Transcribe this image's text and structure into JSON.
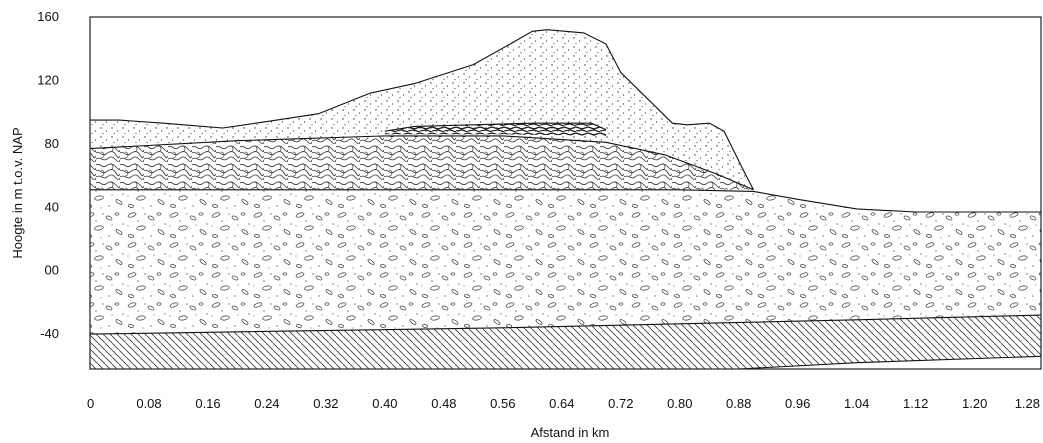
{
  "diagram": {
    "type": "geological-cross-section",
    "y_axis": {
      "title": "Hoogte in m t.o.v. NAP",
      "ticks": [
        160,
        120,
        80,
        40,
        0,
        -40
      ],
      "tick_labels": [
        "160",
        "120",
        "80",
        "40",
        "00",
        "-40"
      ],
      "range": [
        -62,
        160
      ]
    },
    "x_axis": {
      "title": "Afstand in km",
      "ticks": [
        0,
        0.08,
        0.16,
        0.24,
        0.32,
        0.4,
        0.48,
        0.56,
        0.64,
        0.72,
        0.8,
        0.88,
        0.96,
        1.04,
        1.12,
        1.2,
        1.28
      ],
      "tick_labels": [
        "0",
        "0.08",
        "0.16",
        "0.24",
        "0.32",
        "0.40",
        "0.48",
        "0.56",
        "0.64",
        "0.72",
        "0.80",
        "0.88",
        "0.96",
        "1.04",
        "1.12",
        "1.20",
        "1.28"
      ],
      "range": [
        0,
        1.29
      ]
    },
    "layers": [
      {
        "id": "hatched-base",
        "pattern": "diagonal-hatch",
        "top": [
          [
            0,
            -40
          ],
          [
            0.56,
            -36
          ],
          [
            1.04,
            -31
          ],
          [
            1.29,
            -28
          ]
        ],
        "bottom": [
          [
            0,
            -62
          ],
          [
            0.48,
            -62
          ],
          [
            0.88,
            -62
          ],
          [
            1.04,
            -58
          ],
          [
            1.29,
            -54
          ]
        ]
      },
      {
        "id": "gravel",
        "pattern": "pebbles",
        "top": [
          [
            0,
            51
          ],
          [
            0.8,
            51
          ],
          [
            0.9,
            50
          ],
          [
            0.96,
            45
          ],
          [
            1.04,
            39
          ],
          [
            1.12,
            37
          ],
          [
            1.29,
            37
          ]
        ],
        "bottom": [
          [
            0,
            -40
          ],
          [
            0.56,
            -36
          ],
          [
            1.04,
            -31
          ],
          [
            1.29,
            -28
          ]
        ]
      },
      {
        "id": "contorted",
        "pattern": "contorted-lines",
        "top": [
          [
            0,
            77
          ],
          [
            0.2,
            82
          ],
          [
            0.4,
            85
          ],
          [
            0.56,
            85
          ],
          [
            0.7,
            81
          ],
          [
            0.78,
            73
          ],
          [
            0.85,
            61
          ],
          [
            0.9,
            51
          ]
        ],
        "bottom": [
          [
            0,
            51
          ],
          [
            0.9,
            51
          ]
        ]
      },
      {
        "id": "lens",
        "pattern": "dark-streaks",
        "top": [
          [
            0.4,
            88
          ],
          [
            0.44,
            91
          ],
          [
            0.52,
            92
          ],
          [
            0.6,
            93
          ],
          [
            0.68,
            93
          ],
          [
            0.7,
            89
          ]
        ],
        "bottom": [
          [
            0.4,
            86
          ],
          [
            0.56,
            86
          ],
          [
            0.7,
            85
          ]
        ]
      },
      {
        "id": "sand-top",
        "pattern": "dots",
        "top": [
          [
            0,
            95
          ],
          [
            0.04,
            95
          ],
          [
            0.1,
            93
          ],
          [
            0.18,
            90
          ],
          [
            0.24,
            94
          ],
          [
            0.31,
            99
          ],
          [
            0.38,
            112
          ],
          [
            0.44,
            118
          ],
          [
            0.52,
            130
          ],
          [
            0.57,
            143
          ],
          [
            0.6,
            151
          ],
          [
            0.62,
            152
          ],
          [
            0.67,
            150
          ],
          [
            0.7,
            143
          ],
          [
            0.72,
            125
          ],
          [
            0.79,
            93
          ],
          [
            0.81,
            92
          ],
          [
            0.84,
            93
          ],
          [
            0.86,
            88
          ],
          [
            0.89,
            60
          ],
          [
            0.9,
            51
          ]
        ],
        "bottom": [
          [
            0,
            77
          ],
          [
            0.2,
            82
          ],
          [
            0.4,
            85
          ],
          [
            0.56,
            85
          ],
          [
            0.7,
            81
          ],
          [
            0.78,
            73
          ],
          [
            0.85,
            61
          ],
          [
            0.9,
            51
          ]
        ]
      }
    ]
  }
}
